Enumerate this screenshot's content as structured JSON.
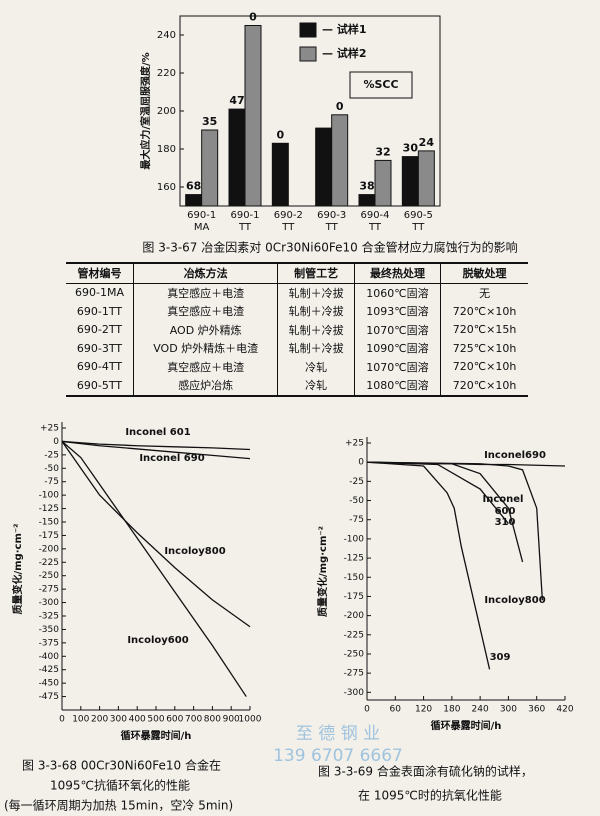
{
  "chart_data": [
    {
      "type": "bar",
      "y_label": "最大应力/室温屈服强度/%",
      "categories": [
        [
          "690-1",
          "MA"
        ],
        [
          "690-1",
          "TT"
        ],
        [
          "690-2",
          "TT"
        ],
        [
          "690-3",
          "TT"
        ],
        [
          "690-4",
          "TT"
        ],
        [
          "690-5",
          "TT"
        ]
      ],
      "series": [
        {
          "name": "— 试样1",
          "color": "#111111",
          "values": [
            156,
            201,
            183,
            191,
            156,
            176
          ],
          "scc": [
            "68",
            "47",
            "0",
            null,
            "38",
            "30"
          ]
        },
        {
          "name": "— 试样2",
          "color": "#8a8a8a",
          "values": [
            190,
            245,
            null,
            198,
            174,
            179
          ],
          "scc": [
            "35",
            "0",
            null,
            "0",
            "32",
            "24"
          ]
        }
      ],
      "box": "%SCC",
      "ylim": [
        150,
        250
      ],
      "yticks": [
        160,
        180,
        200,
        220,
        240
      ]
    },
    {
      "type": "line",
      "y_label": "质量变化/mg·cm⁻²",
      "x_label": "循环暴露时间/h",
      "xlim": [
        0,
        1000
      ],
      "xticks": [
        0,
        100,
        200,
        300,
        400,
        500,
        600,
        700,
        800,
        900,
        1000
      ],
      "ylim": [
        -500,
        25
      ],
      "yticks": [
        {
          "value": 25,
          "label": "+25"
        },
        0,
        -25,
        -50,
        -75,
        -100,
        -125,
        -150,
        -175,
        -200,
        -225,
        -250,
        -275,
        -300,
        -325,
        -350,
        -375,
        -400,
        -425,
        -450,
        -475
      ],
      "series": [
        {
          "name": "Inconel 601",
          "color": "#111111",
          "x": [
            0,
            200,
            400,
            600,
            800,
            1000
          ],
          "values": [
            0,
            -5,
            -8,
            -10,
            -12,
            -15
          ]
        },
        {
          "name": "Inconel 690",
          "color": "#111111",
          "x": [
            0,
            200,
            400,
            600,
            800,
            1000
          ],
          "values": [
            0,
            -8,
            -14,
            -20,
            -26,
            -32
          ]
        },
        {
          "name": "Incoloy800",
          "color": "#111111",
          "x": [
            0,
            100,
            200,
            400,
            600,
            800,
            1000
          ],
          "values": [
            0,
            -50,
            -100,
            -170,
            -235,
            -295,
            -345
          ]
        },
        {
          "name": "Incoloy600",
          "color": "#111111",
          "x": [
            0,
            100,
            200,
            400,
            600,
            800,
            980
          ],
          "values": [
            0,
            -30,
            -80,
            -180,
            -280,
            -380,
            -475
          ]
        }
      ]
    },
    {
      "type": "line",
      "y_label": "质量变化/mg·cm⁻²",
      "x_label": "循环暴露时间/h",
      "xlim": [
        0,
        420
      ],
      "xticks": [
        0,
        60,
        120,
        180,
        240,
        300,
        360,
        420
      ],
      "ylim": [
        -310,
        25
      ],
      "yticks": [
        {
          "value": 25,
          "label": "+25"
        },
        0,
        -25,
        -50,
        -75,
        -100,
        -125,
        -150,
        -175,
        -200,
        -225,
        -250,
        -275,
        -300
      ],
      "annotation": "Inconel",
      "series": [
        {
          "name": "Inconel690",
          "color": "#111111",
          "x": [
            0,
            60,
            120,
            180,
            240,
            300,
            360,
            420
          ],
          "values": [
            0,
            -1,
            -2,
            -2,
            -3,
            -3,
            -4,
            -5
          ]
        },
        {
          "name": "600",
          "color": "#111111",
          "x": [
            0,
            180,
            240,
            300,
            330
          ],
          "values": [
            0,
            -2,
            -15,
            -60,
            -130
          ]
        },
        {
          "name": "310",
          "color": "#111111",
          "x": [
            0,
            150,
            240,
            300
          ],
          "values": [
            0,
            -3,
            -35,
            -80
          ]
        },
        {
          "name": "Incoloy800",
          "color": "#111111",
          "x": [
            0,
            240,
            300,
            330,
            360,
            372
          ],
          "values": [
            0,
            -2,
            -5,
            -10,
            -60,
            -180
          ]
        },
        {
          "name": "309",
          "color": "#111111",
          "x": [
            0,
            120,
            170,
            185,
            200,
            260
          ],
          "values": [
            0,
            -5,
            -40,
            -60,
            -110,
            -270
          ]
        }
      ]
    }
  ],
  "captions": {
    "fig67": "图 3-3-67   冶金因素对 0Cr30Ni60Fe10 合金管材应力腐蚀行为的影响",
    "fig68": [
      "图 3-3-68   00Cr30Ni60Fe10 合金在",
      "1095℃抗循环氧化的性能",
      "(每一循环周期为加热 15min，空冷 5min)"
    ],
    "fig69": [
      "图 3-3-69    合金表面涂有硫化钠的试样，",
      "在 1095℃时的抗氧化性能"
    ]
  },
  "table": {
    "header": [
      "管材编号",
      "冶炼方法",
      "制管工艺",
      "最终热处理",
      "脱敏处理"
    ],
    "rows": [
      [
        "690-1MA",
        "真空感应＋电渣",
        "轧制＋冷拔",
        "1060℃固溶",
        "无"
      ],
      [
        "690-1TT",
        "真空感应＋电渣",
        "轧制＋冷拔",
        "1093℃固溶",
        "720℃×10h"
      ],
      [
        "690-2TT",
        "AOD 炉外精炼",
        "轧制＋冷拔",
        "1070℃固溶",
        "720℃×15h"
      ],
      [
        "690-3TT",
        "VOD 炉外精炼＋电渣",
        "轧制＋冷拔",
        "1090℃固溶",
        "725℃×10h"
      ],
      [
        "690-4TT",
        "真空感应＋电渣",
        "冷轧",
        "1070℃固溶",
        "720℃×10h"
      ],
      [
        "690-5TT",
        "感应炉冶炼",
        "冷轧",
        "1080℃固溶",
        "720℃×10h"
      ]
    ]
  },
  "watermark": [
    "至 德 钢 业",
    "139 6707 6667"
  ]
}
